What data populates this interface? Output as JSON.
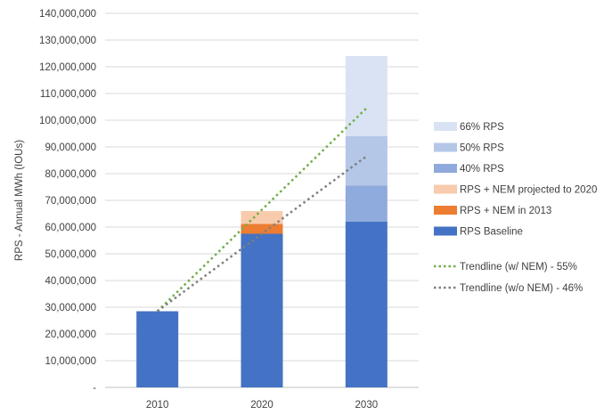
{
  "chart_data": {
    "type": "bar",
    "stacked": true,
    "title": "",
    "xlabel": "",
    "ylabel": "RPS - Annual MWh (IOUs)",
    "ylim": [
      0,
      140000000
    ],
    "ytick_step": 10000000,
    "ytick_labels": [
      "-",
      "10,000,000",
      "20,000,000",
      "30,000,000",
      "40,000,000",
      "50,000,000",
      "60,000,000",
      "70,000,000",
      "80,000,000",
      "90,000,000",
      "100,000,000",
      "110,000,000",
      "120,000,000",
      "130,000,000",
      "140,000,000"
    ],
    "categories": [
      "2010",
      "2020",
      "2030"
    ],
    "gridlines": true,
    "legend_position": "right",
    "series": [
      {
        "name": "RPS Baseline",
        "color": "#4472C4",
        "values": [
          28500000,
          57500000,
          62000000
        ]
      },
      {
        "name": "RPS + NEM in 2013",
        "color": "#ED7D31",
        "values": [
          0,
          3700000,
          0
        ]
      },
      {
        "name": "RPS + NEM projected to 2020",
        "color": "#F8CBAD",
        "values": [
          0,
          4800000,
          0
        ]
      },
      {
        "name": "40% RPS",
        "color": "#8FAADC",
        "values": [
          0,
          0,
          13500000
        ]
      },
      {
        "name": "50% RPS",
        "color": "#B4C7E7",
        "values": [
          0,
          0,
          18500000
        ]
      },
      {
        "name": "66% RPS",
        "color": "#DAE3F3",
        "values": [
          0,
          0,
          30000000
        ]
      }
    ],
    "legend_bar_order": [
      "66% RPS",
      "50% RPS",
      "40% RPS",
      "RPS + NEM projected to 2020",
      "RPS + NEM in 2013",
      "RPS Baseline"
    ],
    "trendlines": [
      {
        "name": "Trendline (w/ NEM) - 55%",
        "color": "#70AD47",
        "x": [
          "2010",
          "2030"
        ],
        "y": [
          28500000,
          104500000
        ]
      },
      {
        "name": "Trendline (w/o NEM) - 46%",
        "color": "#7F7F7F",
        "x": [
          "2010",
          "2030"
        ],
        "y": [
          28500000,
          86500000
        ]
      }
    ]
  }
}
